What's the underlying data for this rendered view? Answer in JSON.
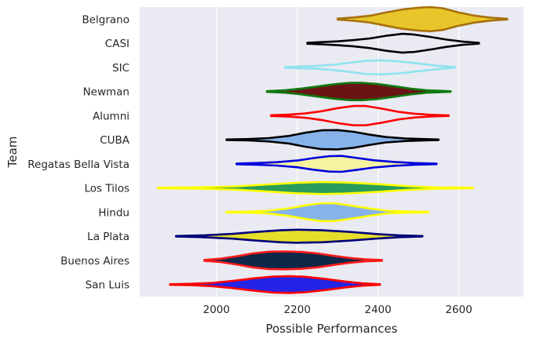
{
  "chart_data": {
    "type": "violin",
    "orientation": "horizontal",
    "xlabel": "Possible Performances",
    "ylabel": "Team",
    "xlim": [
      1810,
      2760
    ],
    "xticks": [
      2000,
      2200,
      2400,
      2600
    ],
    "grid": true,
    "background": "#eaeaf2",
    "categories": [
      "Belgrano",
      "CASI",
      "SIC",
      "Newman",
      "Alumni",
      "CUBA",
      "Regatas Bella Vista",
      "Los Tilos",
      "Hindu",
      "La Plata",
      "Buenos Aires",
      "San Luis"
    ],
    "series": [
      {
        "name": "Belgrano",
        "min": 2300,
        "max": 2720,
        "fill": "#e8c52a",
        "edge": "#a8700e",
        "profile": [
          [
            2300,
            0.04
          ],
          [
            2340,
            0.14
          ],
          [
            2380,
            0.28
          ],
          [
            2420,
            0.55
          ],
          [
            2460,
            0.8
          ],
          [
            2500,
            0.95
          ],
          [
            2530,
            1.0
          ],
          [
            2560,
            0.9
          ],
          [
            2600,
            0.55
          ],
          [
            2640,
            0.28
          ],
          [
            2680,
            0.12
          ],
          [
            2720,
            0.03
          ]
        ]
      },
      {
        "name": "CASI",
        "min": 2225,
        "max": 2650,
        "fill": "none",
        "edge": "#000000",
        "profile": [
          [
            2225,
            0.04
          ],
          [
            2260,
            0.09
          ],
          [
            2300,
            0.16
          ],
          [
            2340,
            0.26
          ],
          [
            2380,
            0.4
          ],
          [
            2420,
            0.62
          ],
          [
            2460,
            0.78
          ],
          [
            2490,
            0.72
          ],
          [
            2530,
            0.52
          ],
          [
            2570,
            0.3
          ],
          [
            2610,
            0.13
          ],
          [
            2650,
            0.03
          ]
        ]
      },
      {
        "name": "SIC",
        "min": 2170,
        "max": 2590,
        "fill": "none",
        "edge": "#8fe3ee",
        "profile": [
          [
            2170,
            0.03
          ],
          [
            2210,
            0.07
          ],
          [
            2250,
            0.12
          ],
          [
            2290,
            0.22
          ],
          [
            2330,
            0.38
          ],
          [
            2370,
            0.55
          ],
          [
            2410,
            0.58
          ],
          [
            2450,
            0.5
          ],
          [
            2490,
            0.36
          ],
          [
            2530,
            0.2
          ],
          [
            2560,
            0.1
          ],
          [
            2590,
            0.03
          ]
        ]
      },
      {
        "name": "Newman",
        "min": 2125,
        "max": 2580,
        "fill": "#6b1414",
        "edge": "#0f7a12",
        "profile": [
          [
            2125,
            0.03
          ],
          [
            2170,
            0.1
          ],
          [
            2210,
            0.24
          ],
          [
            2250,
            0.42
          ],
          [
            2290,
            0.6
          ],
          [
            2330,
            0.72
          ],
          [
            2360,
            0.72
          ],
          [
            2400,
            0.62
          ],
          [
            2440,
            0.44
          ],
          [
            2480,
            0.24
          ],
          [
            2520,
            0.1
          ],
          [
            2580,
            0.02
          ]
        ]
      },
      {
        "name": "Alumni",
        "min": 2135,
        "max": 2575,
        "fill": "none",
        "edge": "#ff0000",
        "profile": [
          [
            2135,
            0.03
          ],
          [
            2180,
            0.08
          ],
          [
            2220,
            0.18
          ],
          [
            2260,
            0.36
          ],
          [
            2300,
            0.62
          ],
          [
            2340,
            0.8
          ],
          [
            2370,
            0.8
          ],
          [
            2410,
            0.58
          ],
          [
            2450,
            0.32
          ],
          [
            2490,
            0.16
          ],
          [
            2530,
            0.07
          ],
          [
            2575,
            0.02
          ]
        ]
      },
      {
        "name": "CUBA",
        "min": 2025,
        "max": 2550,
        "fill": "#86b3ea",
        "edge": "#000000",
        "profile": [
          [
            2025,
            0.02
          ],
          [
            2080,
            0.06
          ],
          [
            2130,
            0.14
          ],
          [
            2180,
            0.32
          ],
          [
            2220,
            0.58
          ],
          [
            2260,
            0.78
          ],
          [
            2300,
            0.8
          ],
          [
            2340,
            0.66
          ],
          [
            2380,
            0.42
          ],
          [
            2420,
            0.22
          ],
          [
            2470,
            0.1
          ],
          [
            2550,
            0.02
          ]
        ]
      },
      {
        "name": "Regatas Bella Vista",
        "min": 2050,
        "max": 2545,
        "fill": "#f5f2a0",
        "edge": "#0000dd",
        "profile": [
          [
            2050,
            0.03
          ],
          [
            2100,
            0.07
          ],
          [
            2150,
            0.14
          ],
          [
            2200,
            0.28
          ],
          [
            2240,
            0.48
          ],
          [
            2280,
            0.64
          ],
          [
            2310,
            0.66
          ],
          [
            2350,
            0.48
          ],
          [
            2390,
            0.3
          ],
          [
            2440,
            0.16
          ],
          [
            2490,
            0.07
          ],
          [
            2545,
            0.02
          ]
        ]
      },
      {
        "name": "Los Tilos",
        "min": 1855,
        "max": 2635,
        "fill": "#2a9d5a",
        "edge": "#ffff00",
        "profile": [
          [
            1855,
            0.02
          ],
          [
            1950,
            0.05
          ],
          [
            2050,
            0.14
          ],
          [
            2130,
            0.3
          ],
          [
            2200,
            0.44
          ],
          [
            2260,
            0.5
          ],
          [
            2320,
            0.46
          ],
          [
            2400,
            0.32
          ],
          [
            2480,
            0.14
          ],
          [
            2550,
            0.05
          ],
          [
            2635,
            0.02
          ]
        ]
      },
      {
        "name": "Hindu",
        "min": 2025,
        "max": 2525,
        "fill": "#86b3ea",
        "edge": "#ffff00",
        "profile": [
          [
            2025,
            0.02
          ],
          [
            2080,
            0.04
          ],
          [
            2130,
            0.12
          ],
          [
            2180,
            0.32
          ],
          [
            2220,
            0.56
          ],
          [
            2260,
            0.74
          ],
          [
            2290,
            0.74
          ],
          [
            2330,
            0.56
          ],
          [
            2380,
            0.3
          ],
          [
            2420,
            0.12
          ],
          [
            2470,
            0.05
          ],
          [
            2525,
            0.02
          ]
        ]
      },
      {
        "name": "La Plata",
        "min": 1900,
        "max": 2510,
        "fill": "#e6df2a",
        "edge": "#00007a",
        "profile": [
          [
            1900,
            0.02
          ],
          [
            1970,
            0.08
          ],
          [
            2040,
            0.2
          ],
          [
            2100,
            0.36
          ],
          [
            2160,
            0.5
          ],
          [
            2200,
            0.54
          ],
          [
            2260,
            0.5
          ],
          [
            2330,
            0.36
          ],
          [
            2400,
            0.18
          ],
          [
            2450,
            0.08
          ],
          [
            2510,
            0.02
          ]
        ]
      },
      {
        "name": "Buenos Aires",
        "min": 1970,
        "max": 2410,
        "fill": "#0d2848",
        "edge": "#ff1a1a",
        "profile": [
          [
            1970,
            0.04
          ],
          [
            2010,
            0.14
          ],
          [
            2050,
            0.34
          ],
          [
            2090,
            0.58
          ],
          [
            2130,
            0.72
          ],
          [
            2170,
            0.74
          ],
          [
            2210,
            0.7
          ],
          [
            2250,
            0.58
          ],
          [
            2290,
            0.38
          ],
          [
            2330,
            0.2
          ],
          [
            2370,
            0.08
          ],
          [
            2410,
            0.03
          ]
        ]
      },
      {
        "name": "San Luis",
        "min": 1885,
        "max": 2405,
        "fill": "#2424e6",
        "edge": "#ff0000",
        "profile": [
          [
            1885,
            0.02
          ],
          [
            1940,
            0.06
          ],
          [
            1990,
            0.14
          ],
          [
            2040,
            0.3
          ],
          [
            2090,
            0.5
          ],
          [
            2140,
            0.66
          ],
          [
            2180,
            0.7
          ],
          [
            2220,
            0.64
          ],
          [
            2270,
            0.46
          ],
          [
            2320,
            0.24
          ],
          [
            2360,
            0.1
          ],
          [
            2405,
            0.02
          ]
        ]
      }
    ]
  }
}
